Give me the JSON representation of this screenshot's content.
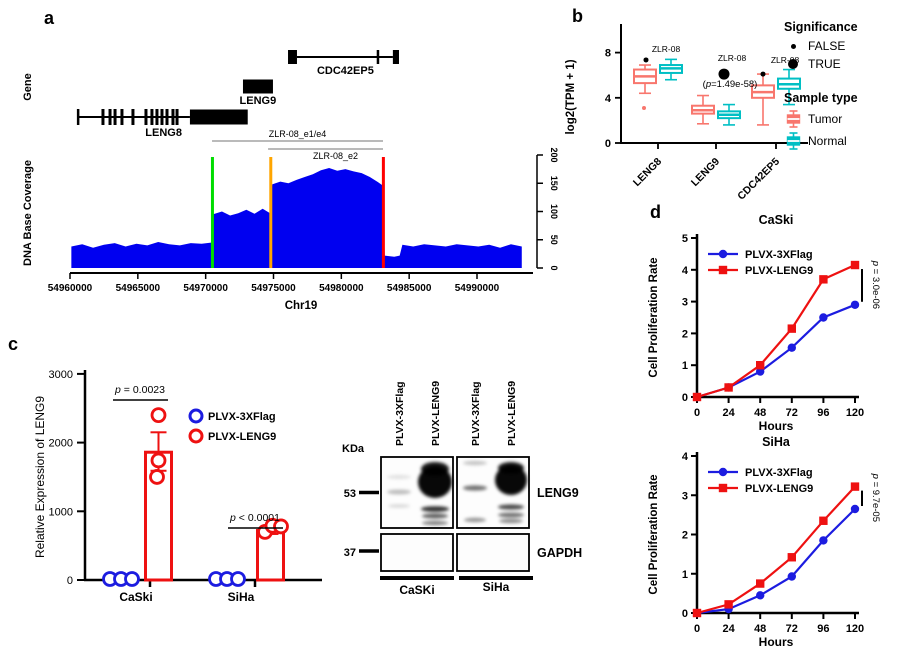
{
  "panel_letters": {
    "a": "a",
    "b": "b",
    "c": "c",
    "d": "d"
  },
  "colors": {
    "blue": "#1C1CE0",
    "red": "#EE1111",
    "tumor": "#F8766D",
    "normal": "#00BFC4",
    "coverage": "#0000F0",
    "marker_green": "#00DD00",
    "marker_orange": "#FFA500",
    "marker_red": "#FF0000",
    "bracket_gray": "#909090",
    "black": "#000000"
  },
  "chart_data": [
    {
      "id": "genome_coverage",
      "type": "area",
      "panel": "a",
      "track_label": "Gene",
      "ylabel": "DNA Base Coverage",
      "xlabel": "Chr19",
      "x_ticks": [
        54960000,
        54965000,
        54970000,
        54975000,
        54980000,
        54985000,
        54990000
      ],
      "y_ticks": [
        0,
        50,
        100,
        150,
        200
      ],
      "genes": [
        {
          "name": "LENG8",
          "start": 54960600,
          "box": [
            54968840,
            54973100
          ],
          "exon_ticks": [
            54962430,
            54962950,
            54963320,
            54963830,
            54964640,
            54965600,
            54966040,
            54966410,
            54966780,
            54967150,
            54967590,
            54967890
          ],
          "label_bp": 54966900
        },
        {
          "name": "LENG9",
          "box": [
            54972750,
            54974960
          ],
          "label_bp": 54973850
        },
        {
          "name": "CDC42EP5",
          "box": [
            54976070,
            54976730
          ],
          "end_box": [
            54983800,
            54984250
          ],
          "intron_tick": 54982700,
          "label_bp": 54980300
        }
      ],
      "amplicons": [
        {
          "label": "ZLR-08_e1/e4",
          "start": 54970470,
          "end": 54983070,
          "label_side": "above"
        },
        {
          "label": "ZLR-08_e2",
          "start": 54974600,
          "end": 54983070,
          "label_side": "below"
        }
      ],
      "markers": [
        {
          "color_key": "marker_green",
          "bp": 54970500
        },
        {
          "color_key": "marker_orange",
          "bp": 54974800
        },
        {
          "color_key": "marker_red",
          "bp": 54983100
        }
      ],
      "coverage": [
        [
          54960100,
          38
        ],
        [
          54960900,
          42
        ],
        [
          54961700,
          36
        ],
        [
          54962500,
          41
        ],
        [
          54963300,
          44
        ],
        [
          54964100,
          38
        ],
        [
          54964900,
          43
        ],
        [
          54965700,
          40
        ],
        [
          54966500,
          46
        ],
        [
          54967300,
          42
        ],
        [
          54968100,
          40
        ],
        [
          54968900,
          44
        ],
        [
          54969700,
          43
        ],
        [
          54970400,
          45
        ],
        [
          54970550,
          95
        ],
        [
          54971200,
          100
        ],
        [
          54971800,
          93
        ],
        [
          54972400,
          97
        ],
        [
          54973000,
          103
        ],
        [
          54973600,
          96
        ],
        [
          54974200,
          105
        ],
        [
          54974750,
          97
        ],
        [
          54974900,
          148
        ],
        [
          54975500,
          153
        ],
        [
          54976100,
          150
        ],
        [
          54976700,
          156
        ],
        [
          54977300,
          161
        ],
        [
          54977900,
          166
        ],
        [
          54978500,
          173
        ],
        [
          54979100,
          177
        ],
        [
          54979700,
          172
        ],
        [
          54980300,
          175
        ],
        [
          54980900,
          171
        ],
        [
          54981500,
          168
        ],
        [
          54982100,
          161
        ],
        [
          54982700,
          152
        ],
        [
          54983050,
          146
        ],
        [
          54983200,
          22
        ],
        [
          54983900,
          20
        ],
        [
          54984300,
          22
        ],
        [
          54984500,
          41
        ],
        [
          54985300,
          38
        ],
        [
          54986100,
          42
        ],
        [
          54986900,
          40
        ],
        [
          54987700,
          38
        ],
        [
          54988500,
          42
        ],
        [
          54989300,
          40
        ],
        [
          54990100,
          38
        ],
        [
          54990900,
          41
        ],
        [
          54991700,
          36
        ],
        [
          54992500,
          42
        ],
        [
          54993300,
          38
        ]
      ]
    },
    {
      "id": "tpm_boxplot",
      "type": "boxplot",
      "panel": "b",
      "ylabel": "log2(TPM + 1)",
      "y_ticks": [
        0,
        4,
        8
      ],
      "ylim": [
        0,
        9
      ],
      "categories": [
        "LENG8",
        "LENG9",
        "CDC42EP5"
      ],
      "series": [
        {
          "name": "Tumor",
          "color_key": "tumor",
          "boxes": [
            {
              "lo": 4.4,
              "q1": 5.3,
              "med": 5.9,
              "q3": 6.5,
              "hi": 6.9,
              "outliers": [
                3.1
              ]
            },
            {
              "lo": 1.7,
              "q1": 2.6,
              "med": 2.9,
              "q3": 3.3,
              "hi": 4.2,
              "outliers": []
            },
            {
              "lo": 1.6,
              "q1": 4.0,
              "med": 4.5,
              "q3": 5.1,
              "hi": 6.1,
              "outliers": []
            }
          ]
        },
        {
          "name": "Normal",
          "color_key": "normal",
          "boxes": [
            {
              "lo": 5.6,
              "q1": 6.2,
              "med": 6.6,
              "q3": 6.9,
              "hi": 7.4,
              "outliers": []
            },
            {
              "lo": 1.6,
              "q1": 2.2,
              "med": 2.5,
              "q3": 2.8,
              "hi": 3.4,
              "outliers": []
            },
            {
              "lo": 3.4,
              "q1": 4.8,
              "med": 5.2,
              "q3": 5.7,
              "hi": 6.5,
              "outliers": []
            }
          ]
        }
      ],
      "annotations": [
        {
          "category": 0,
          "label": "ZLR-08",
          "sub": "",
          "dot": "small",
          "dot_val": 7.35
        },
        {
          "category": 1,
          "label": "ZLR-08",
          "sub": "(p=1.49e-58)",
          "dot": "large",
          "dot_val": 6.1
        },
        {
          "category": 2,
          "label": "ZLR-08",
          "sub": "",
          "dot": "small",
          "dot_val": 6.1
        }
      ],
      "legend": {
        "significance_title": "Significance",
        "false_label": "FALSE",
        "true_label": "TRUE",
        "sample_title": "Sample type",
        "tumor_label": "Tumor",
        "normal_label": "Normal"
      }
    },
    {
      "id": "qpcr_bar",
      "type": "bar",
      "panel": "c",
      "ylabel": "Relative Expression of LENG9",
      "y_ticks": [
        0,
        1000,
        2000,
        3000
      ],
      "ylim": [
        0,
        3000
      ],
      "categories": [
        "CaSki",
        "SiHa"
      ],
      "series": [
        {
          "name": "PLVX-3XFlag",
          "color_key": "blue",
          "marker": "circle",
          "values": [
            0,
            0
          ],
          "points": [
            [
              0,
              0,
              0
            ],
            [
              0,
              0,
              0
            ]
          ]
        },
        {
          "name": "PLVX-LENG9",
          "color_key": "red",
          "marker": "circle",
          "values": [
            1860,
            720
          ],
          "error": [
            [
              1590,
              2150
            ],
            [
              670,
              770
            ]
          ],
          "points": [
            [
              2400,
              1740,
              1500
            ],
            [
              700,
              790,
              780
            ]
          ]
        }
      ],
      "pvalues": [
        {
          "text": "p = 0.0023",
          "category": 0
        },
        {
          "text": "p < 0.0001",
          "category": 1
        }
      ]
    },
    {
      "id": "prolif_caski",
      "type": "line",
      "panel": "d",
      "title": "CaSki",
      "xlabel": "Hours",
      "ylabel": "Cell Proliferation Rate",
      "x": [
        0,
        24,
        48,
        72,
        96,
        120
      ],
      "y_ticks": [
        0,
        1,
        2,
        3,
        4,
        5
      ],
      "ylim": [
        0,
        5
      ],
      "series": [
        {
          "name": "PLVX-3XFlag",
          "color_key": "blue",
          "marker": "circle",
          "values": [
            0,
            0.3,
            0.8,
            1.55,
            2.5,
            2.9
          ]
        },
        {
          "name": "PLVX-LENG9",
          "color_key": "red",
          "marker": "square",
          "values": [
            0,
            0.3,
            1.0,
            2.15,
            3.7,
            4.15
          ]
        }
      ],
      "pvalue": "p = 3.0e-06"
    },
    {
      "id": "prolif_siha",
      "type": "line",
      "panel": "d",
      "title": "SiHa",
      "xlabel": "Hours",
      "ylabel": "Cell Proliferation Rate",
      "x": [
        0,
        24,
        48,
        72,
        96,
        120
      ],
      "y_ticks": [
        0,
        1,
        2,
        3,
        4
      ],
      "ylim": [
        0,
        4
      ],
      "series": [
        {
          "name": "PLVX-3XFlag",
          "color_key": "blue",
          "marker": "circle",
          "values": [
            0,
            0.1,
            0.45,
            0.93,
            1.85,
            2.65
          ]
        },
        {
          "name": "PLVX-LENG9",
          "color_key": "red",
          "marker": "square",
          "values": [
            0,
            0.22,
            0.75,
            1.42,
            2.35,
            3.22
          ]
        }
      ],
      "pvalue": "p = 9.7e-05"
    }
  ],
  "blot": {
    "kda_label": "KDa",
    "lane_labels": [
      "PLVX-3XFlag",
      "PLVX-LENG9",
      "PLVX-3XFlag",
      "PLVX-LENG9"
    ],
    "marker_53": "53",
    "marker_37": "37",
    "row_label_top": "LENG9",
    "row_label_bottom": "GAPDH",
    "group_labels": [
      "CaSKi",
      "SiHa"
    ]
  }
}
